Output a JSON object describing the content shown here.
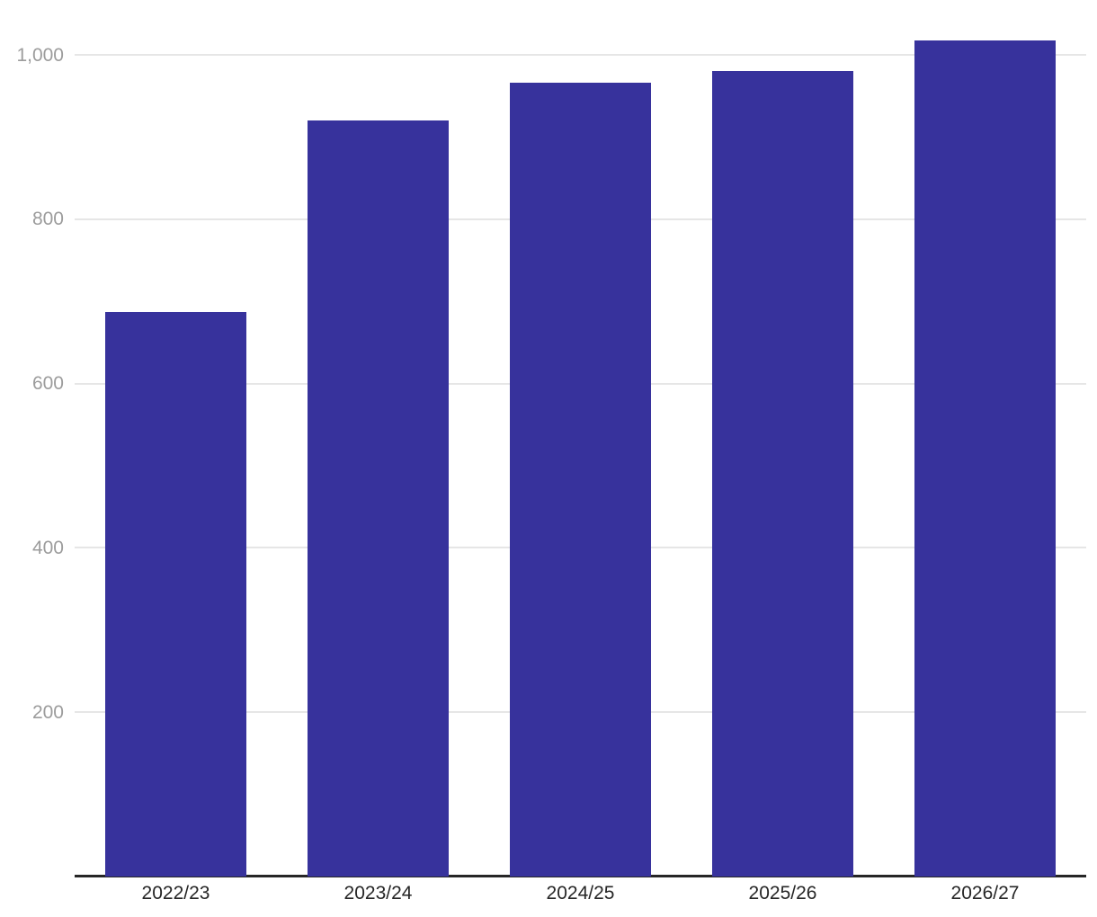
{
  "chart_data": {
    "type": "bar",
    "categories": [
      "2022/23",
      "2023/24",
      "2024/25",
      "2025/26",
      "2026/27"
    ],
    "values": [
      687,
      920,
      966,
      980,
      1018
    ],
    "series_name": "",
    "title": "",
    "xlabel": "",
    "ylabel": "",
    "ylim": [
      0,
      1000
    ],
    "yticks": [
      {
        "value": 200,
        "label": "200"
      },
      {
        "value": 400,
        "label": "400"
      },
      {
        "value": 600,
        "label": "600"
      },
      {
        "value": 800,
        "label": "800"
      },
      {
        "value": 1000,
        "label": "1,000"
      }
    ],
    "grid": true,
    "legend": false,
    "colors": {
      "bar_fill": "#37329c",
      "gridline": "#e6e6e6",
      "axis_line": "#262626",
      "ytick_text": "#9c9c9c",
      "xtick_text": "#262626"
    }
  }
}
